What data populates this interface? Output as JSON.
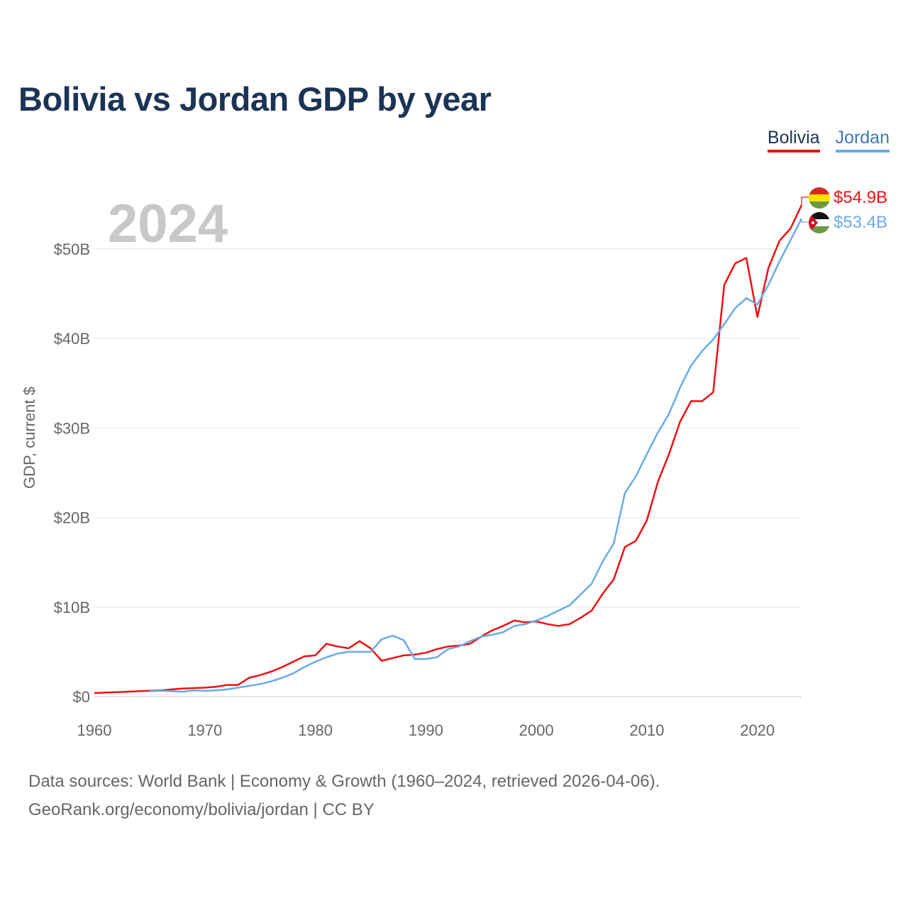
{
  "title": "Bolivia vs Jordan GDP by year",
  "year_label": "2024",
  "legend": [
    {
      "name": "Bolivia",
      "color": "#ee1111"
    },
    {
      "name": "Jordan",
      "color": "#6aaae8"
    }
  ],
  "footer": {
    "line1": "Data sources: World Bank | Economy & Growth (1960–2024, retrieved 2026-04-06).",
    "line2": "GeoRank.org/economy/bolivia/jordan | CC BY"
  },
  "chart_data": {
    "type": "line",
    "title": "Bolivia vs Jordan GDP by year",
    "xlabel": "",
    "ylabel": "GDP, current $",
    "xlim": [
      1960,
      2024
    ],
    "ylim": [
      0,
      55
    ],
    "unit": "billion US$",
    "x_ticks": [
      1960,
      1970,
      1980,
      1990,
      2000,
      2010,
      2020
    ],
    "y_ticks": [
      0,
      10,
      20,
      30,
      40,
      50
    ],
    "y_tick_labels": [
      "$0",
      "$10B",
      "$20B",
      "$30B",
      "$40B",
      "$50B"
    ],
    "series": [
      {
        "name": "Bolivia",
        "color": "#ee1111",
        "end_label": "$54.9B",
        "flag": "bolivia-flag-icon",
        "x": [
          1960,
          1961,
          1962,
          1963,
          1964,
          1965,
          1966,
          1967,
          1968,
          1969,
          1970,
          1971,
          1972,
          1973,
          1974,
          1975,
          1976,
          1977,
          1978,
          1979,
          1980,
          1981,
          1982,
          1983,
          1984,
          1985,
          1986,
          1987,
          1988,
          1989,
          1990,
          1991,
          1992,
          1993,
          1994,
          1995,
          1996,
          1997,
          1998,
          1999,
          2000,
          2001,
          2002,
          2003,
          2004,
          2005,
          2006,
          2007,
          2008,
          2009,
          2010,
          2011,
          2012,
          2013,
          2014,
          2015,
          2016,
          2017,
          2018,
          2019,
          2020,
          2021,
          2022,
          2023,
          2024
        ],
        "values": [
          0.4,
          0.45,
          0.5,
          0.55,
          0.6,
          0.65,
          0.7,
          0.8,
          0.9,
          0.95,
          1.0,
          1.1,
          1.3,
          1.3,
          2.1,
          2.4,
          2.8,
          3.3,
          3.9,
          4.5,
          4.6,
          5.9,
          5.6,
          5.4,
          6.2,
          5.4,
          4.0,
          4.3,
          4.6,
          4.7,
          4.9,
          5.3,
          5.6,
          5.7,
          5.9,
          6.7,
          7.4,
          7.9,
          8.5,
          8.3,
          8.4,
          8.1,
          7.9,
          8.1,
          8.8,
          9.6,
          11.5,
          13.1,
          16.7,
          17.4,
          19.7,
          24.0,
          27.1,
          30.7,
          33.0,
          33.0,
          34.0,
          46.0,
          48.4,
          49.0,
          42.4,
          47.9,
          50.9,
          52.3,
          54.9
        ]
      },
      {
        "name": "Jordan",
        "color": "#6aaae8",
        "end_label": "$53.4B",
        "flag": "jordan-flag-icon",
        "x": [
          1965,
          1966,
          1967,
          1968,
          1969,
          1970,
          1971,
          1972,
          1973,
          1974,
          1975,
          1976,
          1977,
          1978,
          1979,
          1980,
          1981,
          1982,
          1983,
          1984,
          1985,
          1986,
          1987,
          1988,
          1989,
          1990,
          1991,
          1992,
          1993,
          1994,
          1995,
          1996,
          1997,
          1998,
          1999,
          2000,
          2001,
          2002,
          2003,
          2004,
          2005,
          2006,
          2007,
          2008,
          2009,
          2010,
          2011,
          2012,
          2013,
          2014,
          2015,
          2016,
          2017,
          2018,
          2019,
          2020,
          2021,
          2022,
          2023,
          2024
        ],
        "values": [
          0.6,
          0.65,
          0.6,
          0.55,
          0.7,
          0.65,
          0.7,
          0.8,
          1.0,
          1.2,
          1.4,
          1.7,
          2.1,
          2.6,
          3.3,
          3.9,
          4.4,
          4.8,
          5.0,
          5.0,
          5.0,
          6.4,
          6.8,
          6.3,
          4.2,
          4.2,
          4.4,
          5.3,
          5.6,
          6.2,
          6.7,
          6.9,
          7.2,
          7.9,
          8.1,
          8.5,
          9.0,
          9.6,
          10.2,
          11.4,
          12.6,
          15.1,
          17.1,
          22.7,
          24.6,
          27.1,
          29.5,
          31.6,
          34.5,
          37.0,
          38.6,
          39.9,
          41.6,
          43.4,
          44.5,
          43.8,
          46.0,
          48.6,
          51.0,
          53.4
        ]
      }
    ]
  }
}
